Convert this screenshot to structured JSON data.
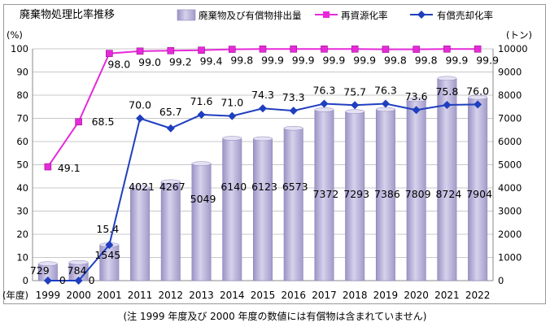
{
  "note": "(注 1999 年度及び 2000 年度の数値には有償物は含まれていません)",
  "chart_data": {
    "type": "bar",
    "title": "廃棄物処理比率推移",
    "categories": [
      "1999",
      "2000",
      "2001",
      "2011",
      "2012",
      "2013",
      "2014",
      "2015",
      "2016",
      "2017",
      "2018",
      "2019",
      "2020",
      "2021",
      "2022"
    ],
    "x_prefix": "(年度)",
    "left_axis": {
      "unit": "(%)",
      "min": 0,
      "max": 100,
      "ticks": [
        0,
        10,
        20,
        30,
        40,
        50,
        60,
        70,
        80,
        90,
        100
      ]
    },
    "right_axis": {
      "unit": "(トン)",
      "min": 0,
      "max": 10000,
      "ticks": [
        0,
        1000,
        2000,
        3000,
        4000,
        5000,
        6000,
        7000,
        8000,
        9000,
        10000
      ]
    },
    "legend_position": "top",
    "grid": true,
    "series": [
      {
        "name": "廃棄物及び有償物排出量",
        "kind": "bar",
        "axis": "right",
        "color": "#b7b1d6",
        "values": [
          729,
          784,
          1545,
          4021,
          4267,
          5049,
          6140,
          6123,
          6573,
          7372,
          7293,
          7386,
          7809,
          8724,
          7904
        ],
        "labels": [
          "729",
          "784",
          "1545",
          "4021",
          "4267",
          "5049",
          "6140",
          "6123",
          "6573",
          "7372",
          "7293",
          "7386",
          "7809",
          "8724",
          "7904"
        ]
      },
      {
        "name": "再資源化率",
        "kind": "line",
        "axis": "left",
        "color": "#e62ad9",
        "marker": "square",
        "values": [
          49.1,
          68.5,
          98.0,
          99.0,
          99.2,
          99.4,
          99.8,
          99.9,
          99.9,
          99.9,
          99.9,
          99.8,
          99.8,
          99.9,
          99.9
        ],
        "labels": [
          "49.1",
          "68.5",
          "98.0",
          "99.0",
          "99.2",
          "99.4",
          "99.8",
          "99.9",
          "99.9",
          "99.9",
          "99.9",
          "99.8",
          "99.8",
          "99.9",
          "99.9"
        ]
      },
      {
        "name": "有償売却化率",
        "kind": "line",
        "axis": "left",
        "color": "#1f3fbf",
        "marker": "diamond",
        "values": [
          0,
          0,
          15.4,
          70.0,
          65.7,
          71.6,
          71.0,
          74.3,
          73.3,
          76.3,
          75.7,
          76.3,
          73.6,
          75.8,
          76.0
        ],
        "labels": [
          "0",
          "0",
          "15.4",
          "70.0",
          "65.7",
          "71.6",
          "71.0",
          "74.3",
          "73.3",
          "76.3",
          "75.7",
          "76.3",
          "73.6",
          "75.8",
          "76.0"
        ]
      }
    ]
  }
}
